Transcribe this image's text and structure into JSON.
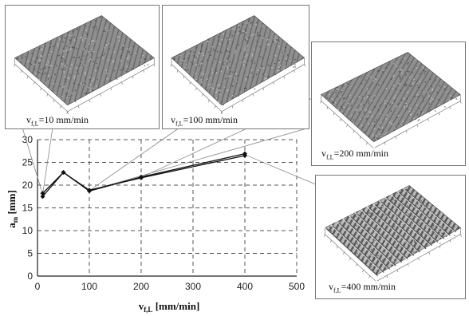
{
  "chart_data": {
    "type": "line",
    "xlabel_main": "v",
    "xlabel_sub": "f,L",
    "xlabel_unit": " [mm/min]",
    "ylabel_main": "a",
    "ylabel_sub": "m",
    "ylabel_unit": " [mm]",
    "xlim": [
      0,
      500
    ],
    "ylim": [
      0,
      30
    ],
    "x_ticks": [
      0,
      100,
      200,
      300,
      400,
      500
    ],
    "y_ticks": [
      0,
      5,
      10,
      15,
      20,
      25,
      30
    ],
    "grid": true,
    "series": [
      {
        "x": [
          10,
          50,
          100,
          200,
          400
        ],
        "y": [
          17.5,
          22.8,
          18.7,
          21.8,
          26.9
        ]
      },
      {
        "x": [
          10,
          50,
          100,
          200,
          400
        ],
        "y": [
          18.2,
          22.8,
          18.9,
          21.6,
          26.5
        ]
      }
    ],
    "insets": [
      {
        "label_main": "v",
        "label_sub": "f,L",
        "label_value": "=10 mm/min",
        "points_to_x": 10,
        "points_to_y": 18
      },
      {
        "label_main": "v",
        "label_sub": "f,L",
        "label_value": "=100 mm/min",
        "points_to_x": 100,
        "points_to_y": 18.8
      },
      {
        "label_main": "v",
        "label_sub": "f,L",
        "label_value": "=200 mm/min",
        "points_to_x": 200,
        "points_to_y": 21.7
      },
      {
        "label_main": "v",
        "label_sub": "f,L",
        "label_value": "=400 mm/min",
        "points_to_x": 400,
        "points_to_y": 26.7
      }
    ]
  }
}
